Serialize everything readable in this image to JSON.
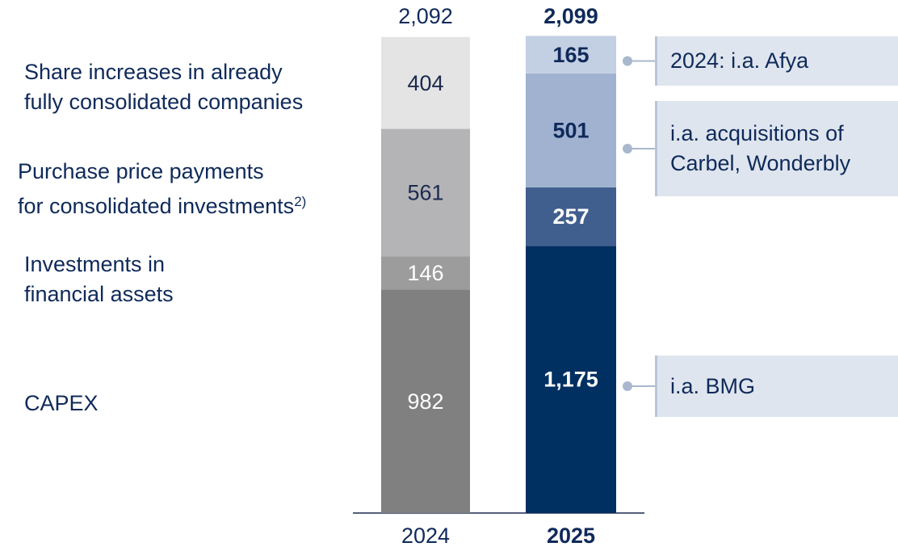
{
  "chart_data": {
    "type": "stacked-bar",
    "categories": [
      "2024",
      "2025"
    ],
    "emphasis": [
      false,
      true
    ],
    "totals": [
      2092,
      2099
    ],
    "total_labels": [
      "2,092",
      "2,099"
    ],
    "series": [
      {
        "name": "CAPEX",
        "colors": [
          "#808080",
          "#002f62"
        ],
        "label_colors": [
          "#ffffff",
          "#ffffff"
        ],
        "values": [
          982,
          1175
        ],
        "value_labels": [
          "982",
          "1,175"
        ]
      },
      {
        "name": "Investments in\nfinancial assets",
        "colors": [
          "#9c9c9c",
          "#415f8e"
        ],
        "label_colors": [
          "#ffffff",
          "#ffffff"
        ],
        "values": [
          146,
          257
        ],
        "value_labels": [
          "146",
          "257"
        ]
      },
      {
        "name": "Purchase price payments\nfor consolidated investments",
        "footnote": "2)",
        "colors": [
          "#b4b4b7",
          "#a0b2d0"
        ],
        "label_colors": [
          "#1b2a4e",
          "#0f2a5a"
        ],
        "values": [
          561,
          501
        ],
        "value_labels": [
          "561",
          "501"
        ]
      },
      {
        "name": "Share increases in already\nfully consolidated companies",
        "colors": [
          "#e4e4e4",
          "#c3cfe3"
        ],
        "label_colors": [
          "#1b2a4e",
          "#0f2a5a"
        ],
        "values": [
          404,
          165
        ],
        "value_labels": [
          "404",
          "165"
        ]
      }
    ],
    "annotations": [
      {
        "text": "2024: i.a. Afya",
        "series": 3
      },
      {
        "text": "i.a. acquisitions of\nCarbel, Wonderbly",
        "series": 2
      },
      {
        "text": "i.a. BMG",
        "series": 0
      }
    ]
  }
}
